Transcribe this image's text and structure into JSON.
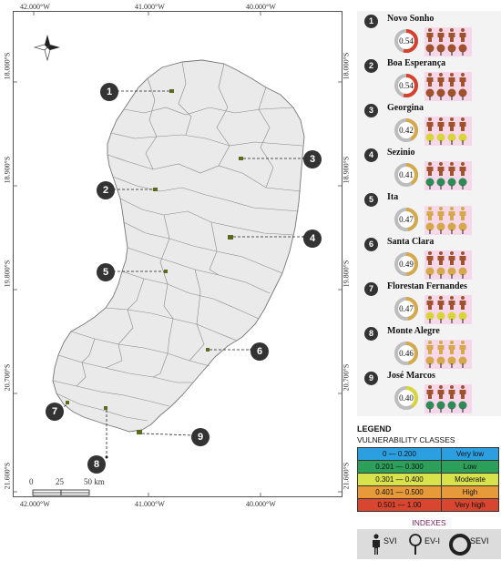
{
  "map": {
    "longitude_labels": [
      "42.000°W",
      "41.000°W",
      "40.000°W"
    ],
    "latitude_labels": [
      "18.000°S",
      "18.900°S",
      "19.800°S",
      "20.700°S",
      "21.600°S"
    ],
    "north_arrow": "compass-rose-icon",
    "scale_bar": {
      "ticks": [
        "0",
        "25",
        "50 km"
      ]
    },
    "markers": [
      "1",
      "2",
      "3",
      "4",
      "5",
      "6",
      "7",
      "8",
      "9"
    ],
    "colors": {
      "land": "#eaeaea",
      "border": "#777777",
      "site": "#5a6b1f"
    }
  },
  "sites": [
    {
      "number": "1",
      "name": "Novo Sonho",
      "sevi": "0.54",
      "sevi_value": 0.54,
      "sevi_class_color": "#d7402d",
      "svi_class_color": "#a0522d",
      "evi_class_color": "#a0522d"
    },
    {
      "number": "2",
      "name": "Boa Esperança",
      "sevi": "0.54",
      "sevi_value": 0.54,
      "sevi_class_color": "#d7402d",
      "svi_class_color": "#a0522d",
      "evi_class_color": "#a0522d"
    },
    {
      "number": "3",
      "name": "Georgina",
      "sevi": "0.42",
      "sevi_value": 0.42,
      "sevi_class_color": "#d4a84b",
      "svi_class_color": "#a0522d",
      "evi_class_color": "#d8d43a"
    },
    {
      "number": "4",
      "name": "Sezinio",
      "sevi": "0.41",
      "sevi_value": 0.41,
      "sevi_class_color": "#d4a84b",
      "svi_class_color": "#a0522d",
      "evi_class_color": "#2e8b57"
    },
    {
      "number": "5",
      "name": "Ita",
      "sevi": "0.47",
      "sevi_value": 0.47,
      "sevi_class_color": "#d4a84b",
      "svi_class_color": "#d4a84b",
      "evi_class_color": "#d4a84b"
    },
    {
      "number": "6",
      "name": "Santa Clara",
      "sevi": "0.49",
      "sevi_value": 0.49,
      "sevi_class_color": "#d4a84b",
      "svi_class_color": "#a0522d",
      "evi_class_color": "#d4a84b"
    },
    {
      "number": "7",
      "name": "Florestan Fernandes",
      "sevi": "0.47",
      "sevi_value": 0.47,
      "sevi_class_color": "#d4a84b",
      "svi_class_color": "#a0522d",
      "evi_class_color": "#d8d43a"
    },
    {
      "number": "8",
      "name": "Monte Alegre",
      "sevi": "0.46",
      "sevi_value": 0.46,
      "sevi_class_color": "#d4a84b",
      "svi_class_color": "#d4a84b",
      "evi_class_color": "#d4a84b"
    },
    {
      "number": "9",
      "name": "José Marcos",
      "sevi": "0.40",
      "sevi_value": 0.4,
      "sevi_class_color": "#d8d43a",
      "svi_class_color": "#a0522d",
      "evi_class_color": "#2e8b57"
    }
  ],
  "legend": {
    "title": "LEGEND",
    "subtitle": "VULNERABILITY CLASSES",
    "classes": [
      {
        "range": "0 — 0.200",
        "label": "Very low",
        "color": "#2b9fe0"
      },
      {
        "range": "0.201 — 0.300",
        "label": "Low",
        "color": "#2ca05a"
      },
      {
        "range": "0.301 — 0.400",
        "label": "Moderate",
        "color": "#d8e24a"
      },
      {
        "range": "0.401 — 0.500",
        "label": "High",
        "color": "#e69a3a"
      },
      {
        "range": "0.501 — 1.00",
        "label": "Very high",
        "color": "#d9462f"
      }
    ]
  },
  "indexes": {
    "title": "INDEXES",
    "items": [
      {
        "label": "SVI",
        "icon": "person-icon"
      },
      {
        "label": "EV-I",
        "icon": "tree-icon"
      },
      {
        "label": "SEVI",
        "icon": "ring-icon"
      }
    ]
  }
}
